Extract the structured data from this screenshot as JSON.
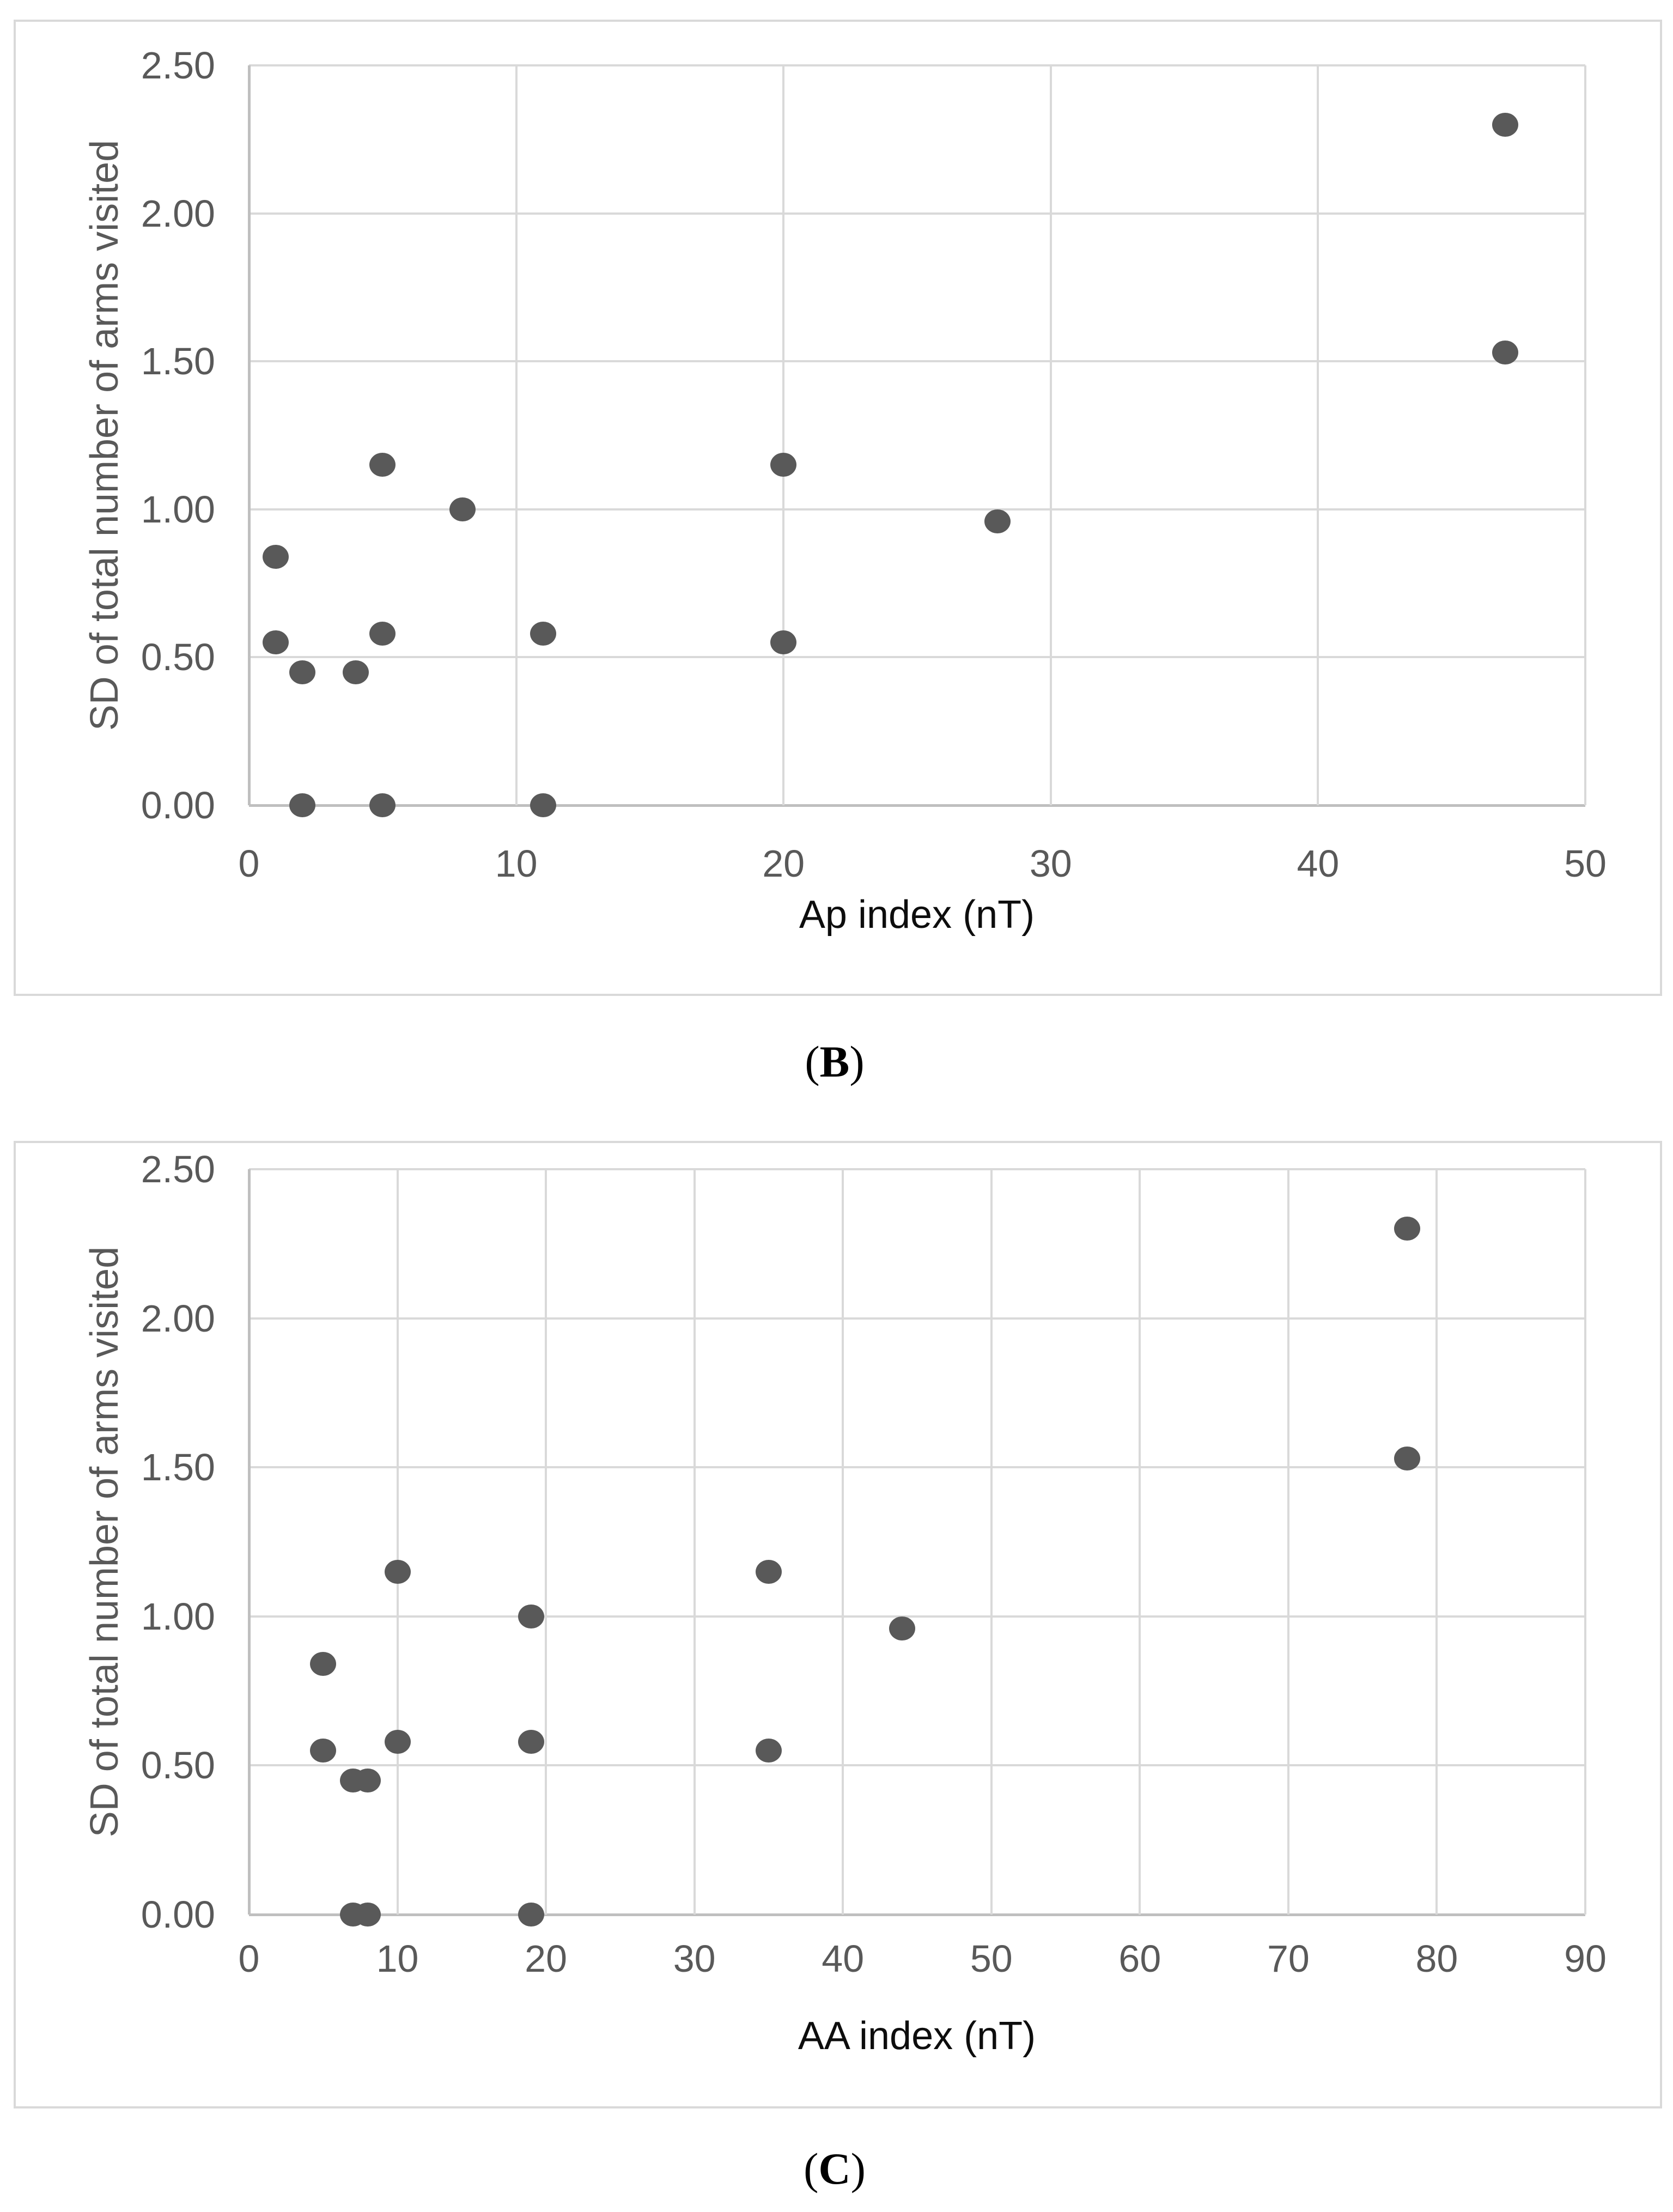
{
  "colors": {
    "background": "#ffffff",
    "gridline": "#d9d9d9",
    "axis_line": "#bfbfbf",
    "point_fill": "#595959",
    "tick_text": "#595959",
    "axis_title_text": "#0d0d0d",
    "caption_text": "#000000"
  },
  "chart_data": [
    {
      "type": "scatter",
      "caption_prefix": "(",
      "caption_letter": "B",
      "caption_suffix": ")",
      "xlabel": "Ap index (nT)",
      "ylabel": "SD of total number of arms visited",
      "xlim": [
        0,
        50
      ],
      "ylim": [
        0,
        2.5
      ],
      "grid": "on",
      "legend": "none",
      "x_tick_labels": [
        "0",
        "10",
        "20",
        "30",
        "40",
        "50"
      ],
      "y_tick_labels": [
        "2.50",
        "2.00",
        "1.50",
        "1.00",
        "0.50",
        "0.00"
      ],
      "points": [
        [
          1,
          0.84
        ],
        [
          1,
          0.55
        ],
        [
          2,
          0.45
        ],
        [
          2,
          0.0
        ],
        [
          4,
          0.45
        ],
        [
          5,
          1.15
        ],
        [
          5,
          0.58
        ],
        [
          5,
          0.0
        ],
        [
          8,
          1.0
        ],
        [
          11,
          0.58
        ],
        [
          11,
          0.0
        ],
        [
          20,
          1.15
        ],
        [
          20,
          0.55
        ],
        [
          28,
          0.96
        ],
        [
          47,
          2.3
        ],
        [
          47,
          1.53
        ]
      ]
    },
    {
      "type": "scatter",
      "caption_prefix": "(",
      "caption_letter": "C",
      "caption_suffix": ")",
      "xlabel": "AA index (nT)",
      "ylabel": "SD of total number of arms visited",
      "xlim": [
        0,
        90
      ],
      "ylim": [
        0,
        2.5
      ],
      "grid": "on",
      "legend": "none",
      "x_tick_labels": [
        "0",
        "10",
        "20",
        "30",
        "40",
        "50",
        "60",
        "70",
        "80",
        "90"
      ],
      "y_tick_labels": [
        "2.50",
        "2.00",
        "1.50",
        "1.00",
        "0.50",
        "0.00"
      ],
      "points": [
        [
          5,
          0.84
        ],
        [
          5,
          0.55
        ],
        [
          7,
          0.45
        ],
        [
          8,
          0.45
        ],
        [
          7,
          0.0
        ],
        [
          8,
          0.0
        ],
        [
          10,
          1.15
        ],
        [
          10,
          0.58
        ],
        [
          19,
          1.0
        ],
        [
          19,
          0.58
        ],
        [
          19,
          0.0
        ],
        [
          35,
          1.15
        ],
        [
          35,
          0.55
        ],
        [
          44,
          0.96
        ],
        [
          78,
          2.3
        ],
        [
          78,
          1.53
        ]
      ]
    }
  ]
}
